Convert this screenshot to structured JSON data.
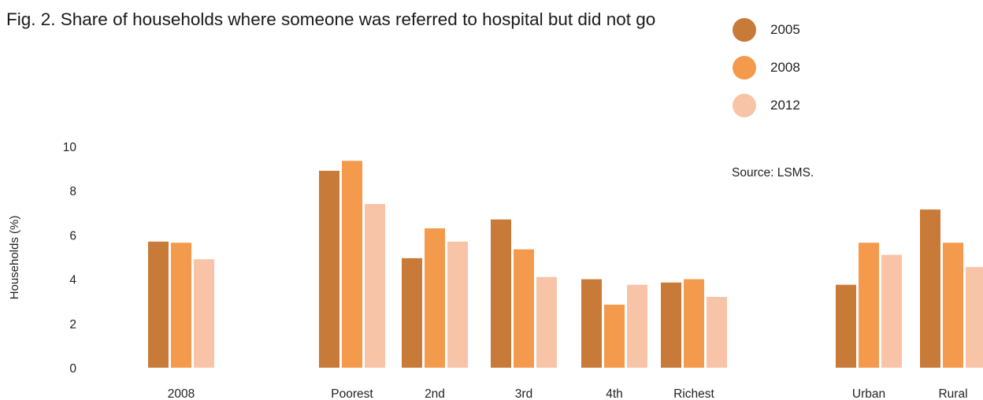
{
  "title": "Fig. 2. Share of households where someone was referred to hospital but did not go",
  "source": "Source: LSMS.",
  "colors": {
    "2005": "#c87a38",
    "2008": "#f39a4d",
    "2012": "#f8c4a8"
  },
  "chart_data": {
    "type": "bar",
    "title": "Fig. 2. Share of households where someone was referred to hospital but did not go",
    "ylabel": "Households (%)",
    "xlabel": "",
    "ylim": [
      0,
      10
    ],
    "yticks": [
      0,
      2,
      4,
      6,
      8,
      10
    ],
    "grid": false,
    "legend": "top-right",
    "categories": [
      "2008",
      "Poorest",
      "2nd",
      "3rd",
      "4th",
      "Richest",
      "Urban",
      "Rural"
    ],
    "series": [
      {
        "name": "2005",
        "values": [
          5.7,
          8.9,
          4.95,
          6.7,
          4.0,
          3.85,
          3.75,
          7.15
        ]
      },
      {
        "name": "2008",
        "values": [
          5.65,
          9.35,
          6.3,
          5.35,
          2.85,
          4.0,
          5.65,
          5.65
        ]
      },
      {
        "name": "2012",
        "values": [
          4.9,
          7.4,
          5.7,
          4.1,
          3.75,
          3.2,
          5.1,
          4.55
        ]
      }
    ]
  }
}
